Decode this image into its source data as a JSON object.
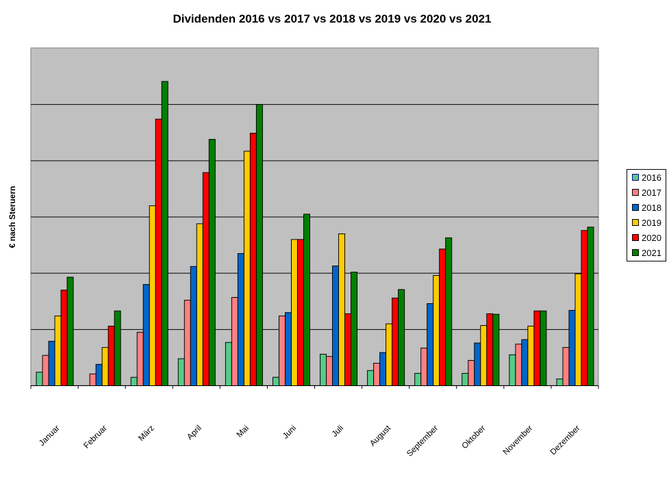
{
  "chart_data": {
    "type": "bar",
    "title": "Dividenden 2016 vs 2017 vs 2018 vs 2019 vs 2020 vs 2021",
    "xlabel": "",
    "ylabel": "€ nach Steruern",
    "ylim": [
      0,
      6
    ],
    "grid": true,
    "legend_position": "right",
    "background": "#c0c0c0",
    "categories": [
      "Januar",
      "Februar",
      "März",
      "April",
      "Mai",
      "Juni",
      "Juli",
      "August",
      "September",
      "Oktober",
      "November",
      "Dezember"
    ],
    "series": [
      {
        "name": "2016",
        "color": "#55cc88",
        "values": [
          0.24,
          0,
          0.15,
          0.48,
          0.77,
          0.15,
          0.56,
          0.27,
          0.22,
          0.22,
          0.55,
          0.12
        ]
      },
      {
        "name": "2017",
        "color": "#ff8080",
        "values": [
          0.54,
          0.21,
          0.95,
          1.52,
          1.57,
          1.24,
          0.52,
          0.4,
          0.67,
          0.45,
          0.74,
          0.68
        ]
      },
      {
        "name": "2018",
        "color": "#0066cc",
        "values": [
          0.79,
          0.38,
          1.8,
          2.12,
          2.35,
          1.3,
          2.13,
          0.59,
          1.46,
          0.76,
          0.82,
          1.34
        ]
      },
      {
        "name": "2019",
        "color": "#ffcc00",
        "values": [
          1.24,
          0.68,
          3.2,
          2.88,
          4.17,
          2.6,
          2.7,
          1.1,
          1.96,
          1.07,
          1.06,
          1.99
        ]
      },
      {
        "name": "2020",
        "color": "#ff0000",
        "values": [
          1.7,
          1.06,
          4.74,
          3.79,
          4.49,
          2.6,
          1.28,
          1.56,
          2.43,
          1.28,
          1.33,
          2.76
        ]
      },
      {
        "name": "2021",
        "color": "#008000",
        "values": [
          1.93,
          1.33,
          5.41,
          4.38,
          5.0,
          3.05,
          2.02,
          1.71,
          2.63,
          1.27,
          1.33,
          2.82
        ]
      }
    ]
  }
}
